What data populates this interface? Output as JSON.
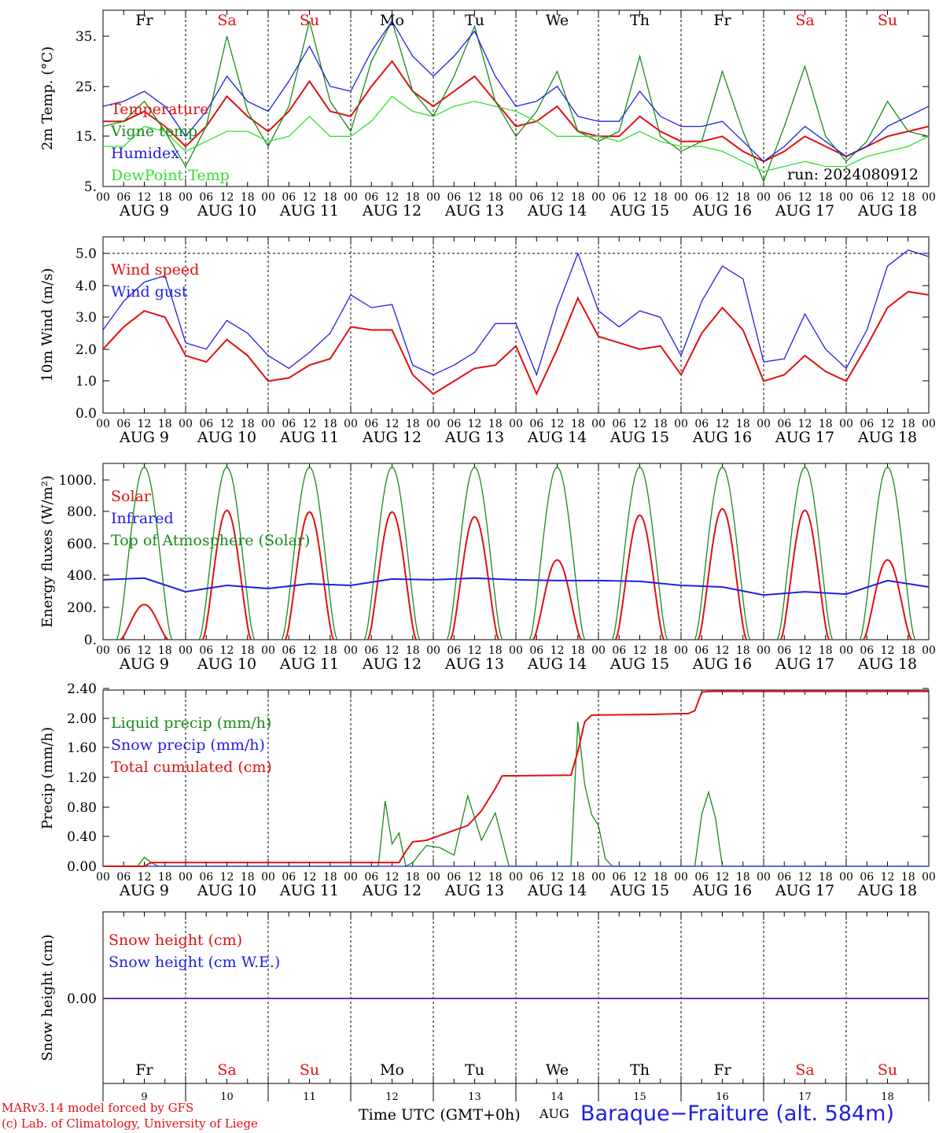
{
  "chart_data": [
    {
      "type": "line",
      "ylabel": "2m Temp. (°C)",
      "yticks": [
        "5.",
        "15.",
        "25.",
        "35."
      ],
      "ylim": [
        5,
        40
      ],
      "x_unit": "hours since AUG 9 00 UTC",
      "series": [
        {
          "name": "Temperature",
          "color": "#e01010",
          "x": [
            0,
            6,
            12,
            18,
            24,
            30,
            36,
            42,
            48,
            54,
            60,
            66,
            72,
            78,
            84,
            90,
            96,
            102,
            108,
            114,
            120,
            126,
            132,
            138,
            144,
            150,
            156,
            162,
            168,
            174,
            180,
            186,
            192,
            198,
            204,
            210,
            216,
            222,
            228,
            234,
            240
          ],
          "values": [
            18,
            18,
            20,
            17,
            13,
            17,
            23,
            19,
            16,
            20,
            26,
            20,
            19,
            25,
            30,
            24,
            21,
            24,
            27,
            22,
            17,
            18,
            21,
            16,
            15,
            15,
            19,
            16,
            14,
            14,
            15,
            12,
            10,
            12,
            15,
            13,
            11,
            13,
            15,
            16,
            17
          ]
        },
        {
          "name": "Vigne temp",
          "color": "#1a8a1a",
          "x": [
            0,
            6,
            12,
            18,
            24,
            30,
            36,
            42,
            48,
            54,
            60,
            66,
            72,
            78,
            84,
            90,
            96,
            102,
            108,
            114,
            120,
            126,
            132,
            138,
            144,
            150,
            156,
            162,
            168,
            174,
            180,
            186,
            192,
            198,
            204,
            210,
            216,
            222,
            228,
            234,
            240
          ],
          "values": [
            17,
            18,
            22,
            16,
            9,
            17,
            35,
            20,
            13,
            21,
            38,
            22,
            16,
            30,
            38,
            24,
            19,
            27,
            37,
            22,
            15,
            20,
            28,
            16,
            14,
            16,
            31,
            15,
            12,
            14,
            28,
            16,
            6,
            17,
            29,
            15,
            10,
            14,
            22,
            16,
            15
          ]
        },
        {
          "name": "Humidex",
          "color": "#2020e0",
          "x": [
            0,
            6,
            12,
            18,
            24,
            30,
            36,
            42,
            48,
            54,
            60,
            66,
            72,
            78,
            84,
            90,
            96,
            102,
            108,
            114,
            120,
            126,
            132,
            138,
            144,
            150,
            156,
            162,
            168,
            174,
            180,
            186,
            192,
            198,
            204,
            210,
            216,
            222,
            228,
            234,
            240
          ],
          "values": [
            21,
            22,
            24,
            21,
            15,
            20,
            27,
            22,
            20,
            26,
            33,
            25,
            24,
            32,
            38,
            31,
            27,
            31,
            36,
            27,
            21,
            22,
            25,
            19,
            18,
            18,
            24,
            19,
            17,
            17,
            18,
            14,
            10,
            13,
            17,
            14,
            11,
            13,
            17,
            19,
            21
          ]
        },
        {
          "name": "DewPoint Temp",
          "color": "#33dd33",
          "x": [
            0,
            6,
            12,
            18,
            24,
            30,
            36,
            42,
            48,
            54,
            60,
            66,
            72,
            78,
            84,
            90,
            96,
            102,
            108,
            114,
            120,
            126,
            132,
            138,
            144,
            150,
            156,
            162,
            168,
            174,
            180,
            186,
            192,
            198,
            204,
            210,
            216,
            222,
            228,
            234,
            240
          ],
          "values": [
            13,
            13,
            17,
            16,
            12,
            14,
            16,
            16,
            14,
            15,
            19,
            15,
            15,
            18,
            23,
            20,
            19,
            21,
            22,
            21,
            20,
            18,
            15,
            15,
            15,
            14,
            16,
            14,
            13,
            13,
            12,
            10,
            8,
            9,
            10,
            9,
            9,
            11,
            12,
            13,
            15
          ]
        }
      ],
      "annotation": "run: 2024080912"
    },
    {
      "type": "line",
      "ylabel": "10m Wind (m/s)",
      "yticks": [
        "0.0",
        "1.0",
        "2.0",
        "3.0",
        "4.0",
        "5.0"
      ],
      "ylim": [
        0,
        5.5
      ],
      "reference_line": 5.0,
      "series": [
        {
          "name": "Wind speed",
          "color": "#e01010",
          "x": [
            0,
            6,
            12,
            18,
            24,
            30,
            36,
            42,
            48,
            54,
            60,
            66,
            72,
            78,
            84,
            90,
            96,
            102,
            108,
            114,
            120,
            126,
            132,
            138,
            144,
            150,
            156,
            162,
            168,
            174,
            180,
            186,
            192,
            198,
            204,
            210,
            216,
            222,
            228,
            234,
            240
          ],
          "values": [
            2.0,
            2.7,
            3.2,
            3.0,
            1.8,
            1.6,
            2.3,
            1.8,
            1.0,
            1.1,
            1.5,
            1.7,
            2.7,
            2.6,
            2.6,
            1.2,
            0.6,
            1.0,
            1.4,
            1.5,
            2.1,
            0.6,
            2.0,
            3.6,
            2.4,
            2.2,
            2.0,
            2.1,
            1.2,
            2.5,
            3.3,
            2.6,
            1.0,
            1.2,
            1.8,
            1.3,
            1.0,
            2.1,
            3.3,
            3.8,
            3.7
          ]
        },
        {
          "name": "Wind gust",
          "color": "#2020e0",
          "x": [
            0,
            6,
            12,
            18,
            24,
            30,
            36,
            42,
            48,
            54,
            60,
            66,
            72,
            78,
            84,
            90,
            96,
            102,
            108,
            114,
            120,
            126,
            132,
            138,
            144,
            150,
            156,
            162,
            168,
            174,
            180,
            186,
            192,
            198,
            204,
            210,
            216,
            222,
            228,
            234,
            240
          ],
          "values": [
            2.6,
            3.5,
            4.1,
            4.3,
            2.2,
            2.0,
            2.9,
            2.5,
            1.8,
            1.4,
            1.9,
            2.5,
            3.7,
            3.3,
            3.4,
            1.5,
            1.2,
            1.5,
            1.9,
            2.8,
            2.8,
            1.2,
            3.3,
            5.0,
            3.2,
            2.7,
            3.2,
            3.0,
            1.8,
            3.5,
            4.6,
            4.2,
            1.6,
            1.7,
            3.1,
            2.0,
            1.4,
            2.6,
            4.6,
            5.1,
            4.9
          ]
        }
      ]
    },
    {
      "type": "line",
      "ylabel": "Energy fluxes (W/m²)",
      "yticks": [
        "0.",
        "200.",
        "400.",
        "600.",
        "800.",
        "1000."
      ],
      "ylim": [
        0,
        1100
      ],
      "series": [
        {
          "name": "Solar",
          "color": "#e01010",
          "daily_peaks": [
            220,
            810,
            800,
            800,
            770,
            500,
            780,
            820,
            810,
            500
          ]
        },
        {
          "name": "Infrared",
          "color": "#2020e0",
          "x": [
            0,
            12,
            24,
            36,
            48,
            60,
            72,
            84,
            96,
            108,
            120,
            132,
            144,
            156,
            168,
            180,
            192,
            204,
            216,
            228,
            240
          ],
          "values": [
            375,
            385,
            300,
            340,
            320,
            350,
            340,
            380,
            375,
            385,
            375,
            370,
            370,
            365,
            340,
            330,
            280,
            300,
            285,
            370,
            330
          ]
        },
        {
          "name": "Top of Atmosphere (Solar)",
          "color": "#1a8a1a",
          "peak": 1080
        }
      ]
    },
    {
      "type": "line",
      "ylabel": "Precip (mm/h)",
      "yticks": [
        "0.00",
        "0.40",
        "0.80",
        "1.20",
        "1.60",
        "2.00",
        "2.40"
      ],
      "ylim": [
        0,
        2.4
      ],
      "series": [
        {
          "name": "Liquid precip (mm/h)",
          "color": "#1a8a1a",
          "x": [
            0,
            10,
            12,
            14,
            16,
            80,
            82,
            84,
            86,
            88,
            90,
            94,
            98,
            102,
            106,
            110,
            114,
            118,
            120,
            136,
            138,
            140,
            142,
            144,
            146,
            148,
            150,
            160,
            172,
            174,
            176,
            178,
            180,
            240
          ],
          "values": [
            0,
            0,
            0.12,
            0.05,
            0,
            0,
            0.88,
            0.3,
            0.45,
            0,
            0.05,
            0.28,
            0.25,
            0.15,
            0.95,
            0.35,
            0.72,
            0,
            0,
            0,
            1.95,
            1.1,
            0.7,
            0.55,
            0.1,
            0,
            0,
            0,
            0,
            0.7,
            1.0,
            0.65,
            0,
            0
          ]
        },
        {
          "name": "Snow precip (mm/h)",
          "color": "#2020e0",
          "x": [
            0,
            240
          ],
          "values": [
            0,
            0
          ]
        },
        {
          "name": "Total cumulated (cm)",
          "color": "#e01010",
          "x": [
            0,
            12,
            14,
            86,
            88,
            90,
            94,
            100,
            106,
            110,
            114,
            116,
            136,
            138,
            140,
            142,
            160,
            168,
            170,
            172,
            174,
            176,
            240
          ],
          "values": [
            0,
            0,
            0.05,
            0.05,
            0.2,
            0.33,
            0.35,
            0.45,
            0.55,
            0.75,
            1.05,
            1.22,
            1.23,
            1.55,
            1.95,
            2.04,
            2.05,
            2.06,
            2.06,
            2.1,
            2.35,
            2.36,
            2.36
          ]
        }
      ]
    },
    {
      "type": "line",
      "ylabel": "Snow height (cm)",
      "yticks": [
        "0.00"
      ],
      "series": [
        {
          "name": "Snow height (cm)",
          "color": "#e01010",
          "values": [
            0,
            0
          ]
        },
        {
          "name": "Snow height (cm W.E.)",
          "color": "#2020e0",
          "values": [
            0,
            0
          ]
        }
      ]
    }
  ],
  "days": {
    "top": [
      "Fr",
      "Sa",
      "Su",
      "Mo",
      "Tu",
      "We",
      "Th",
      "Fr",
      "Sa",
      "Su"
    ],
    "bottom": [
      "Fr",
      "Sa",
      "Su",
      "Mo",
      "Tu",
      "We",
      "Th",
      "Fr",
      "Sa",
      "Su"
    ],
    "weekend_color": "#e01010",
    "weekday_color": "#000000",
    "weekend": [
      false,
      true,
      true,
      false,
      false,
      false,
      false,
      false,
      true,
      true
    ]
  },
  "date_labels": [
    "AUG  9",
    "AUG 10",
    "AUG 11",
    "AUG 12",
    "AUG 13",
    "AUG 14",
    "AUG 15",
    "AUG 16",
    "AUG 17",
    "AUG 18"
  ],
  "hour_ticks": [
    "00",
    "06",
    "12",
    "18"
  ],
  "end_tick": "00",
  "bottom_day_numbers": [
    "9",
    "10",
    "11",
    "12",
    "13",
    "14",
    "15",
    "16",
    "17",
    "18"
  ],
  "footer": {
    "credit_line1": "MARv3.14 model forced by GFS",
    "credit_line2": "(c) Lab. of Climatology, University of Liege",
    "x_axis_title": "Time UTC (GMT+0h)",
    "month": "AUG",
    "station": "Baraque−Fraiture (alt. 584m)"
  }
}
